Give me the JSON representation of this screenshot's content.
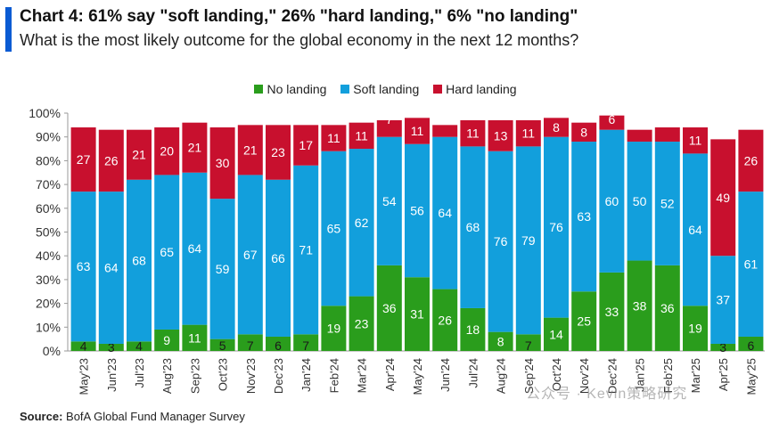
{
  "header": {
    "title": "Chart 4: 61% say \"soft landing,\" 26% \"hard landing,\" 6% \"no landing\"",
    "subtitle": "What is the most likely outcome for the global economy in the next 12 months?"
  },
  "source": {
    "label": "Source:",
    "text": " BofA Global Fund Manager Survey"
  },
  "watermark": "公众号 · Kevin策略研究",
  "colors": {
    "no_landing": "#2a9d1c",
    "soft_landing": "#129fdc",
    "hard_landing": "#c8102e",
    "accent": "#0a5bd3",
    "grid": "#c8c8c8"
  },
  "chart_data": {
    "type": "bar",
    "stacked": true,
    "title": "Chart 4: 61% say \"soft landing,\" 26% \"hard landing,\" 6% \"no landing\"",
    "subtitle": "What is the most likely outcome for the global economy in the next 12 months?",
    "xlabel": "",
    "ylabel": "",
    "ylim": [
      0,
      100
    ],
    "y_ticks": [
      "0%",
      "10%",
      "20%",
      "30%",
      "40%",
      "50%",
      "60%",
      "70%",
      "80%",
      "90%",
      "100%"
    ],
    "legend_position": "top-center",
    "grid": false,
    "categories": [
      "May'23",
      "Jun'23",
      "Jul'23",
      "Aug'23",
      "Sep'23",
      "Oct'23",
      "Nov'23",
      "Dec'23",
      "Jan'24",
      "Feb'24",
      "Mar'24",
      "Apr'24",
      "May'24",
      "Jun'24",
      "Jul'24",
      "Aug'24",
      "Sep'24",
      "Oct'24",
      "Nov'24",
      "Dec'24",
      "Jan'25",
      "Feb'25",
      "Mar'25",
      "Apr'25",
      "May'25"
    ],
    "series": [
      {
        "name": "No landing",
        "color": "#2a9d1c",
        "values": [
          4,
          3,
          4,
          9,
          11,
          5,
          7,
          6,
          7,
          19,
          23,
          36,
          31,
          26,
          18,
          8,
          7,
          14,
          25,
          33,
          38,
          36,
          19,
          3,
          6
        ]
      },
      {
        "name": "Soft landing",
        "color": "#129fdc",
        "values": [
          63,
          64,
          68,
          65,
          64,
          59,
          67,
          66,
          71,
          65,
          62,
          54,
          56,
          64,
          68,
          76,
          79,
          76,
          63,
          60,
          50,
          52,
          64,
          37,
          61
        ]
      },
      {
        "name": "Hard landing",
        "color": "#c8102e",
        "values": [
          27,
          26,
          21,
          20,
          21,
          30,
          21,
          23,
          17,
          11,
          11,
          7,
          11,
          5,
          11,
          13,
          11,
          8,
          8,
          6,
          5,
          6,
          11,
          49,
          26
        ]
      }
    ]
  }
}
